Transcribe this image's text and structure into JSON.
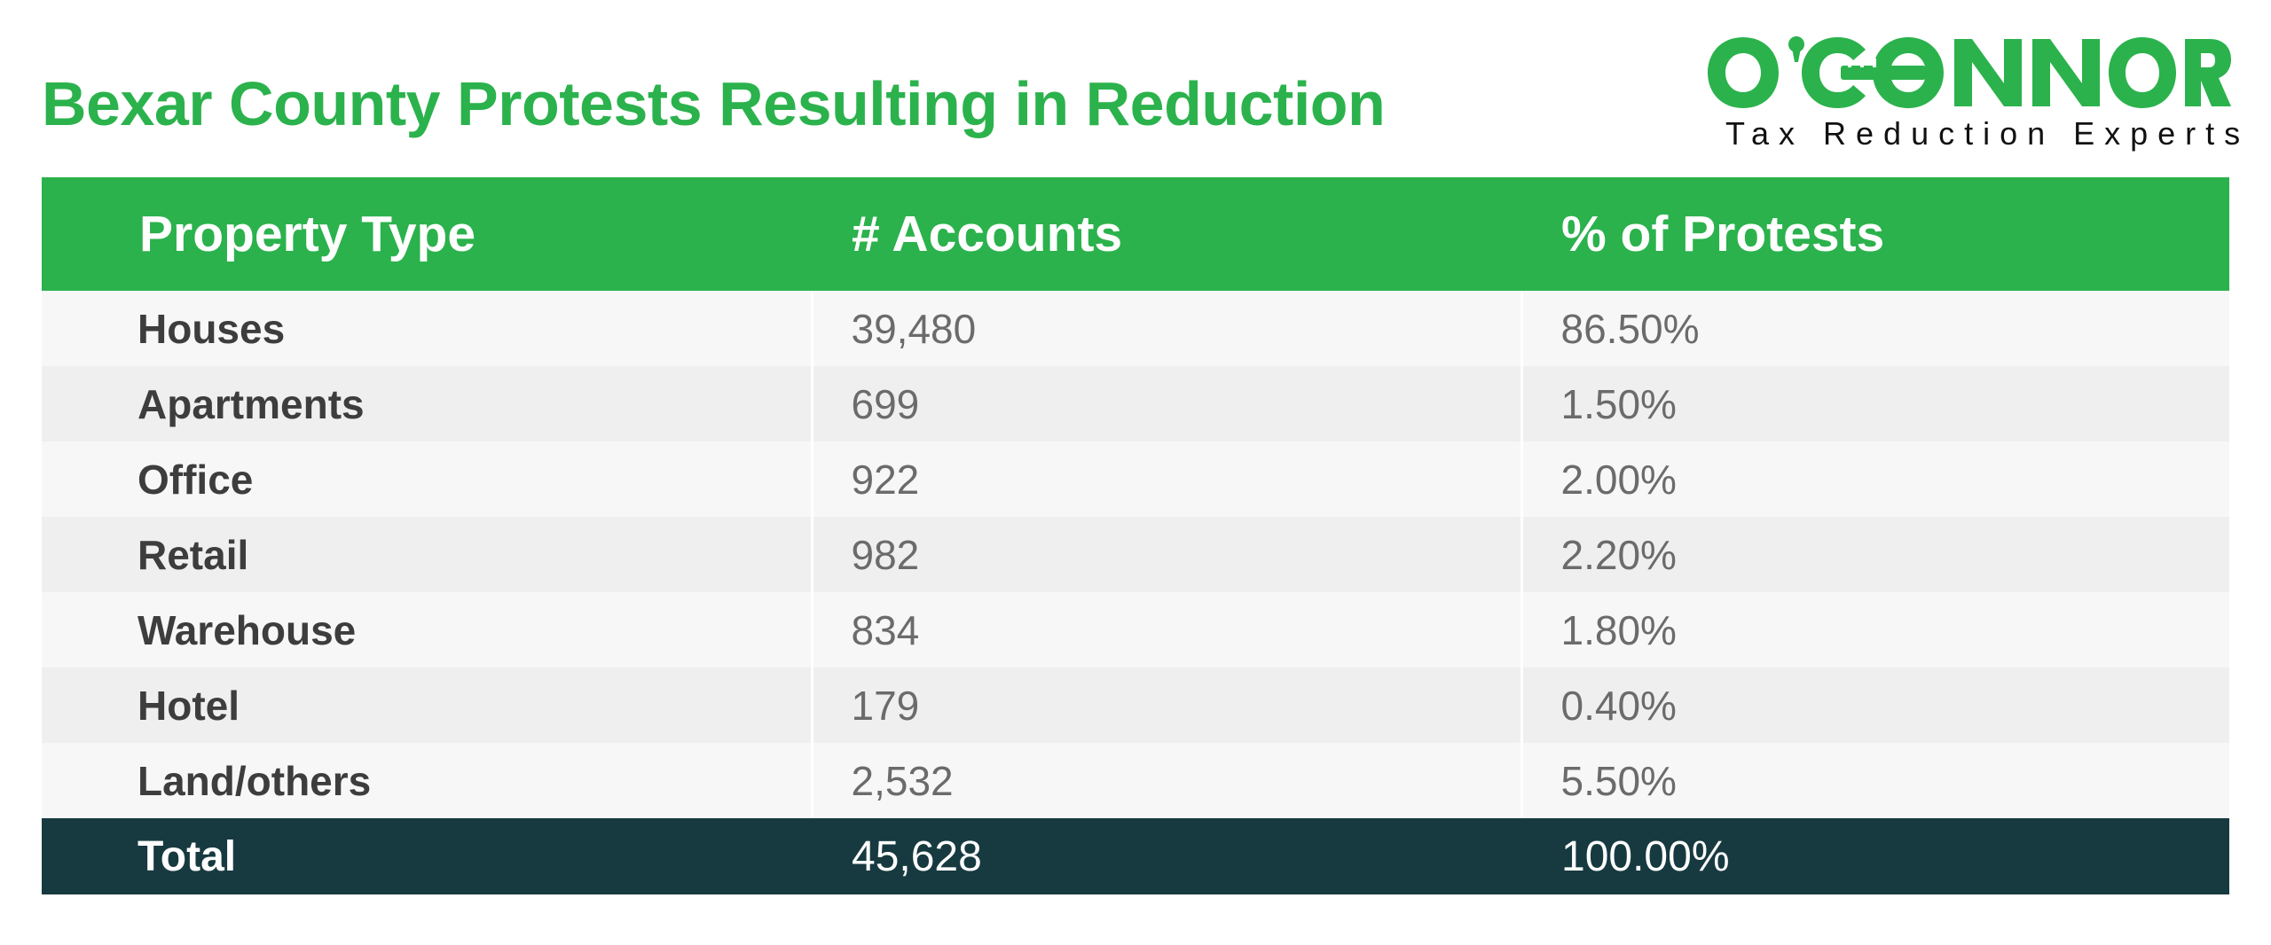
{
  "title": "Bexar County Protests Resulting in Reduction",
  "logo": {
    "wordmark": "O'CONNOR",
    "tagline": "Tax Reduction Experts",
    "color": "#2bb24c"
  },
  "colors": {
    "accent": "#2bb24c",
    "header_bg": "#2bb24c",
    "total_bg": "#173a40",
    "row_light": "#f7f7f7",
    "row_dark": "#efefef"
  },
  "chart_data": {
    "type": "table",
    "title": "Bexar County Protests Resulting in Reduction",
    "columns": [
      "Property Type",
      "# Accounts",
      "% of Protests"
    ],
    "rows": [
      [
        "Houses",
        "39,480",
        "86.50%"
      ],
      [
        "Apartments",
        "699",
        "1.50%"
      ],
      [
        "Office",
        "922",
        "2.00%"
      ],
      [
        "Retail",
        "982",
        "2.20%"
      ],
      [
        "Warehouse",
        "834",
        "1.80%"
      ],
      [
        "Hotel",
        "179",
        "0.40%"
      ],
      [
        "Land/others",
        "2,532",
        "5.50%"
      ]
    ],
    "total": [
      "Total",
      "45,628",
      "100.00%"
    ]
  }
}
